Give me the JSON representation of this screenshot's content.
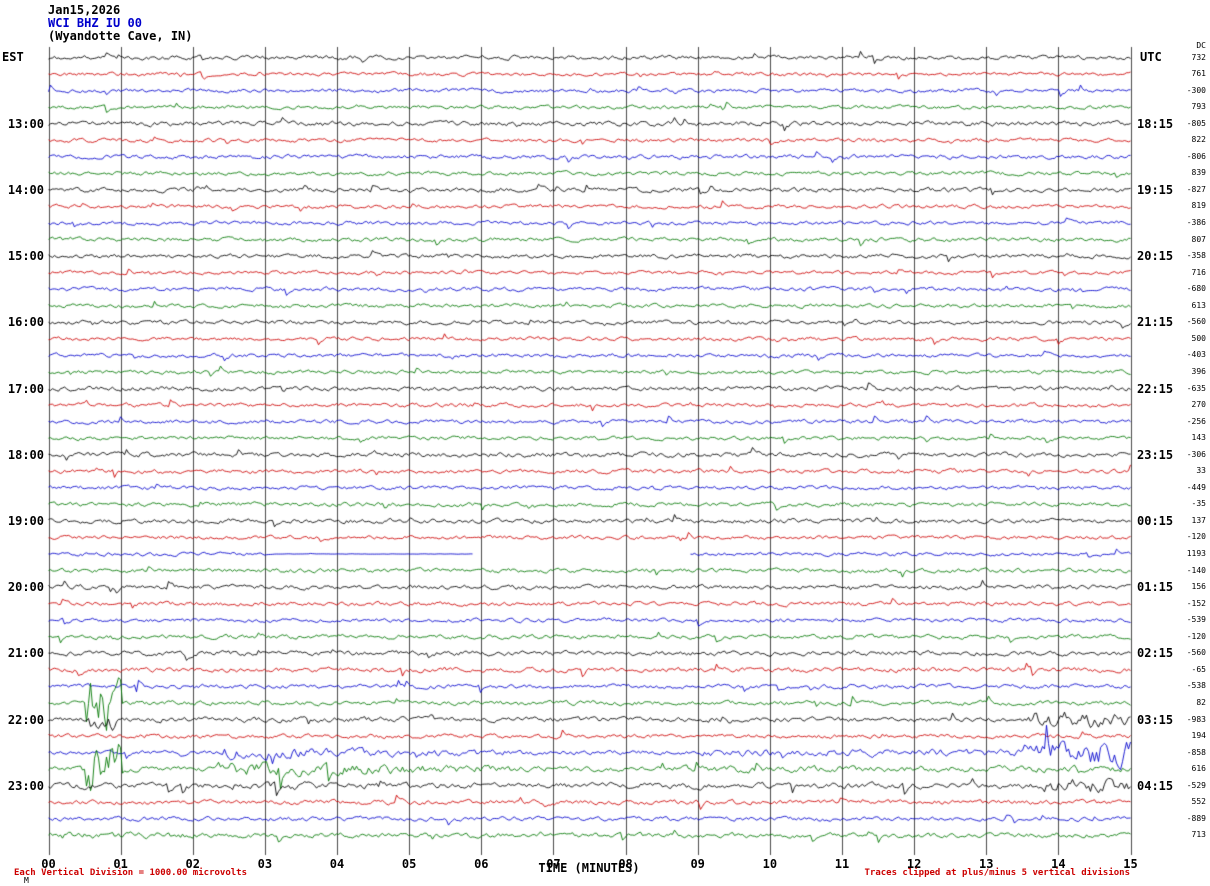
{
  "header": {
    "date": "Jan15,2026",
    "station": "WCI BHZ IU 00",
    "location": "(Wyandotte Cave, IN)"
  },
  "axes": {
    "left_label": "EST",
    "right_label": "UTC",
    "right_col_header": "DC",
    "x_axis_label": "TIME (MINUTES)",
    "x_ticks": [
      "00",
      "01",
      "02",
      "03",
      "04",
      "05",
      "06",
      "07",
      "08",
      "09",
      "10",
      "11",
      "12",
      "13",
      "14",
      "15"
    ]
  },
  "footer": {
    "left_note": "Each Vertical Division = 1000.00 microvolts",
    "right_note": "Traces clipped at plus/minus 5 vertical divisions",
    "corner_mark": "M"
  },
  "colors": {
    "traces": {
      "black": "#000000",
      "red": "#cc0000",
      "blue": "#0000cc",
      "green": "#007700"
    },
    "grid": "#4a4a4a",
    "note_red": "#cc0000"
  },
  "chart_data": {
    "type": "line",
    "title": "Helicorder record WCI BHZ IU 00 (Wyandotte Cave, IN)",
    "xlabel": "TIME (MINUTES)",
    "x_range_minutes": [
      0,
      15
    ],
    "minutes_per_line": 15,
    "traces_per_hour": 4,
    "clip_divisions": 5,
    "microvolts_per_division": "1000.00",
    "hour_rows": [
      {
        "est": "",
        "utc": ""
      },
      {
        "est": "13:00",
        "utc": "18:15"
      },
      {
        "est": "14:00",
        "utc": "19:15"
      },
      {
        "est": "15:00",
        "utc": "20:15"
      },
      {
        "est": "16:00",
        "utc": "21:15"
      },
      {
        "est": "17:00",
        "utc": "22:15"
      },
      {
        "est": "18:00",
        "utc": "23:15"
      },
      {
        "est": "19:00",
        "utc": "00:15"
      },
      {
        "est": "20:00",
        "utc": "01:15"
      },
      {
        "est": "21:00",
        "utc": "02:15"
      },
      {
        "est": "22:00",
        "utc": "03:15"
      },
      {
        "est": "23:00",
        "utc": "04:15"
      }
    ],
    "rows": [
      {
        "color": "black",
        "dc": 732,
        "amp": 2.6
      },
      {
        "color": "red",
        "dc": 761,
        "amp": 2.2
      },
      {
        "color": "blue",
        "dc": -300,
        "amp": 2.4
      },
      {
        "color": "green",
        "dc": 793,
        "amp": 2.2
      },
      {
        "color": "black",
        "dc": -805,
        "amp": 3.0
      },
      {
        "color": "red",
        "dc": 822,
        "amp": 2.4
      },
      {
        "color": "blue",
        "dc": -806,
        "amp": 2.6
      },
      {
        "color": "green",
        "dc": 839,
        "amp": 2.4
      },
      {
        "color": "black",
        "dc": -827,
        "amp": 2.8
      },
      {
        "color": "red",
        "dc": 819,
        "amp": 2.4
      },
      {
        "color": "blue",
        "dc": -386,
        "amp": 2.4
      },
      {
        "color": "green",
        "dc": 807,
        "amp": 2.6
      },
      {
        "color": "black",
        "dc": -358,
        "amp": 2.6
      },
      {
        "color": "red",
        "dc": 716,
        "amp": 2.2
      },
      {
        "color": "blue",
        "dc": -680,
        "amp": 2.6
      },
      {
        "color": "green",
        "dc": 613,
        "amp": 2.4
      },
      {
        "color": "black",
        "dc": -560,
        "amp": 2.6
      },
      {
        "color": "red",
        "dc": 500,
        "amp": 2.4
      },
      {
        "color": "blue",
        "dc": -403,
        "amp": 2.4
      },
      {
        "color": "green",
        "dc": 396,
        "amp": 2.4
      },
      {
        "color": "black",
        "dc": -635,
        "amp": 2.8
      },
      {
        "color": "red",
        "dc": 270,
        "amp": 2.4
      },
      {
        "color": "blue",
        "dc": -256,
        "amp": 2.4
      },
      {
        "color": "green",
        "dc": 143,
        "amp": 2.4
      },
      {
        "color": "black",
        "dc": -306,
        "amp": 3.0
      },
      {
        "color": "red",
        "dc": 33,
        "amp": 2.6
      },
      {
        "color": "blue",
        "dc": -449,
        "amp": 2.4
      },
      {
        "color": "green",
        "dc": -35,
        "amp": 2.6
      },
      {
        "color": "black",
        "dc": 137,
        "amp": 2.8
      },
      {
        "color": "red",
        "dc": -120,
        "amp": 2.4
      },
      {
        "color": "blue",
        "dc": 1193,
        "amp": 2.2,
        "flats": [
          {
            "start": 3.0,
            "end": 5.9
          }
        ],
        "gaps": [
          {
            "start": 5.9,
            "end": 8.9
          }
        ]
      },
      {
        "color": "green",
        "dc": -140,
        "amp": 2.6
      },
      {
        "color": "black",
        "dc": 156,
        "amp": 2.8
      },
      {
        "color": "red",
        "dc": -152,
        "amp": 2.6
      },
      {
        "color": "blue",
        "dc": -539,
        "amp": 2.4
      },
      {
        "color": "green",
        "dc": -120,
        "amp": 2.6
      },
      {
        "color": "black",
        "dc": -560,
        "amp": 3.0
      },
      {
        "color": "red",
        "dc": -65,
        "amp": 3.0
      },
      {
        "color": "blue",
        "dc": -538,
        "amp": 2.6
      },
      {
        "color": "green",
        "dc": 82,
        "amp": 2.8,
        "events": [
          {
            "start": 0.5,
            "end": 1.0,
            "amp": 34
          }
        ]
      },
      {
        "color": "black",
        "dc": -983,
        "amp": 3.2,
        "events": [
          {
            "start": 0.55,
            "end": 0.9,
            "amp": 12
          },
          {
            "start": 13.5,
            "end": 15,
            "amp": 10
          }
        ]
      },
      {
        "color": "red",
        "dc": 194,
        "amp": 2.6
      },
      {
        "color": "blue",
        "dc": -858,
        "amp": 2.6,
        "events": [
          {
            "start": 2.4,
            "end": 9.0,
            "amp": 7,
            "decay": true
          },
          {
            "start": 9.0,
            "end": 13.6,
            "amp": 4.5
          },
          {
            "start": 13.6,
            "end": 15,
            "amp": 16
          }
        ]
      },
      {
        "color": "green",
        "dc": 616,
        "amp": 3.0,
        "events": [
          {
            "start": 0.45,
            "end": 1.05,
            "amp": 32
          },
          {
            "start": 2.3,
            "end": 8.5,
            "amp": 9,
            "decay": true
          },
          {
            "start": 8.5,
            "end": 15,
            "amp": 4
          }
        ]
      },
      {
        "color": "black",
        "dc": -529,
        "amp": 3.6,
        "events": [
          {
            "start": 2.5,
            "end": 9.0,
            "amp": 5.5,
            "decay": true
          },
          {
            "start": 13.8,
            "end": 15,
            "amp": 9
          }
        ]
      },
      {
        "color": "red",
        "dc": 552,
        "amp": 3.0
      },
      {
        "color": "blue",
        "dc": -889,
        "amp": 2.6
      },
      {
        "color": "green",
        "dc": 713,
        "amp": 3.0,
        "events": [
          {
            "start": 0.0,
            "end": 5.5,
            "amp": 5,
            "decay": true
          }
        ]
      }
    ]
  }
}
